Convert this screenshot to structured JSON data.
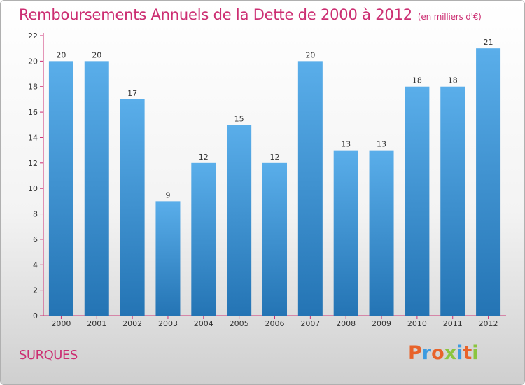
{
  "header": {
    "title": "Remboursements Annuels de la Dette de 2000 à 2012",
    "subtitle": "(en milliers d'€)"
  },
  "footer": {
    "commune": "SURQUES",
    "logo_text": "Proxiti"
  },
  "colors": {
    "title": "#cc2e72",
    "bar_top": "#5aaeea",
    "bar_bottom": "#2474b4",
    "axis": "#cc2e72",
    "logo": [
      "#e8632a",
      "#3d9be0",
      "#e8632a",
      "#8bc53f",
      "#3d9be0",
      "#e8632a",
      "#8bc53f"
    ]
  },
  "chart_data": {
    "type": "bar",
    "title": "Remboursements Annuels de la Dette de 2000 à 2012",
    "subtitle": "(en milliers d'€)",
    "categories": [
      "2000",
      "2001",
      "2002",
      "2003",
      "2004",
      "2005",
      "2006",
      "2007",
      "2008",
      "2009",
      "2010",
      "2011",
      "2012"
    ],
    "values": [
      20,
      20,
      17,
      9,
      12,
      15,
      12,
      20,
      13,
      13,
      18,
      18,
      21
    ],
    "ylim": [
      0,
      22
    ],
    "yticks": [
      0,
      2,
      4,
      6,
      8,
      10,
      12,
      14,
      16,
      18,
      20,
      22
    ],
    "grid": false,
    "data_labels": true
  }
}
